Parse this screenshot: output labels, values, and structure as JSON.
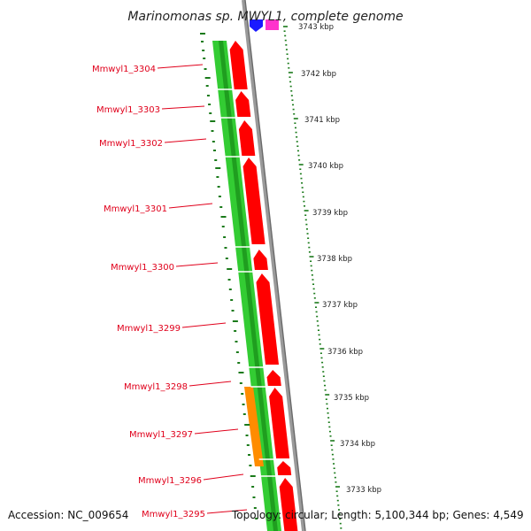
{
  "title": "Marinomonas sp. MWYL1, complete genome",
  "footer": {
    "accession": "Accession: NC_009654",
    "summary": "Topology: circular; Length: 5,100,344 bp; Genes: 4,549"
  },
  "genes": [
    {
      "label": "Mmwyl1_3304"
    },
    {
      "label": "Mmwyl1_3303"
    },
    {
      "label": "Mmwyl1_3302"
    },
    {
      "label": "Mmwyl1_3301"
    },
    {
      "label": "Mmwyl1_3300"
    },
    {
      "label": "Mmwyl1_3299"
    },
    {
      "label": "Mmwyl1_3298"
    },
    {
      "label": "Mmwyl1_3297"
    },
    {
      "label": "Mmwyl1_3296"
    },
    {
      "label": "Mmwyl1_3295"
    }
  ],
  "scale_ticks": [
    {
      "label": "3743 kbp"
    },
    {
      "label": "3742 kbp"
    },
    {
      "label": "3741 kbp"
    },
    {
      "label": "3740 kbp"
    },
    {
      "label": "3739 kbp"
    },
    {
      "label": "3738 kbp"
    },
    {
      "label": "3737 kbp"
    },
    {
      "label": "3736 kbp"
    },
    {
      "label": "3735 kbp"
    },
    {
      "label": "3734 kbp"
    },
    {
      "label": "3733 kbp"
    }
  ],
  "colors": {
    "gene": "#ff0000",
    "cds_light": "#33cc33",
    "cds_dark": "#1f9e1f",
    "highlight": "#ff8c00",
    "backbone": "#8a8a8a",
    "tick": "#1a7a1a",
    "label": "#e0001b",
    "top_blue": "#1a1aff",
    "top_pink": "#ff33cc"
  }
}
